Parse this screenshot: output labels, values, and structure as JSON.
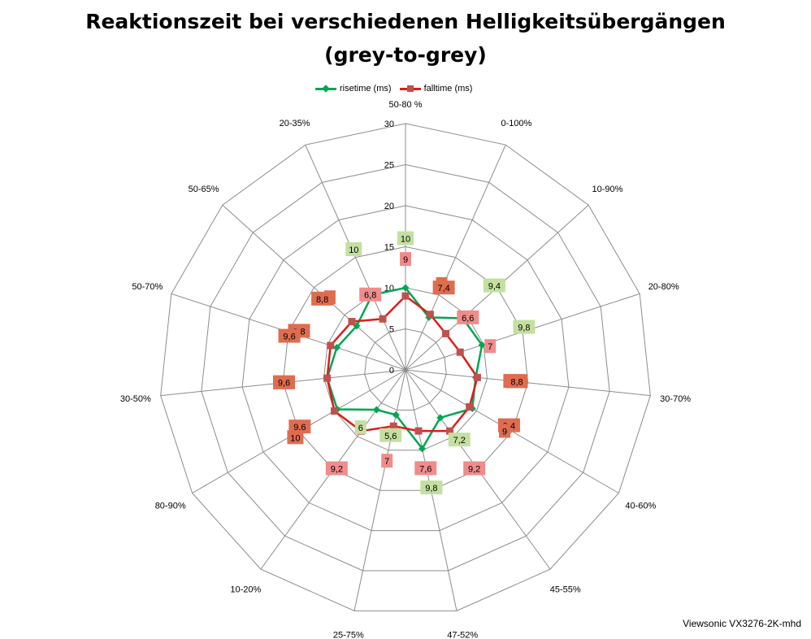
{
  "chart_data": {
    "type": "radar",
    "title": "Reaktionszeit bei verschiedenen Helligkeitsübergängen",
    "subtitle": "(grey-to-grey)",
    "categories": [
      "50-80 %",
      "0-100%",
      "10-90%",
      "20-80%",
      "30-70%",
      "40-60%",
      "45-55%",
      "47-52%",
      "25-75%",
      "10-20%",
      "80-90%",
      "30-50%",
      "50-70%",
      "50-65%",
      "20-35%"
    ],
    "radial_axis": {
      "min": 0,
      "max": 30,
      "step": 5,
      "ticks": [
        "0",
        "5",
        "10",
        "15",
        "20",
        "25",
        "30"
      ]
    },
    "legend_position": "top",
    "series": [
      {
        "name": "risetime (ms)",
        "color": "#00a651",
        "marker": "diamond",
        "label_bg": "#c4e0a0",
        "values": [
          10,
          7,
          9.4,
          9.8,
          8.6,
          9.4,
          7.2,
          9.8,
          5.6,
          6,
          9.6,
          9.6,
          8.8,
          8,
          10
        ],
        "labels": [
          "10",
          "7",
          "9,4",
          "9,8",
          "8,6",
          "9,4",
          "7,2",
          "9,8",
          "5,6",
          "6",
          "9,6",
          "9,6",
          "8,8",
          "8",
          "10"
        ]
      },
      {
        "name": "falltime (ms)",
        "color": "#dd1c1a",
        "marker": "square",
        "label_bg": "#f08c8c",
        "values": [
          9,
          7.4,
          6.6,
          7,
          8.8,
          9,
          9.2,
          7.6,
          7,
          9.2,
          10,
          9.6,
          9.6,
          8.8,
          6.8
        ],
        "labels": [
          "9",
          "7,4",
          "6,6",
          "7",
          "8,8",
          "9",
          "9,2",
          "7,6",
          "7",
          "9,2",
          "10",
          "9,6",
          "9,6",
          "8,8",
          "6,8"
        ]
      }
    ],
    "overlap_label_bg": "#e06c50"
  },
  "footer": "Viewsonic VX3276-2K-mhd"
}
